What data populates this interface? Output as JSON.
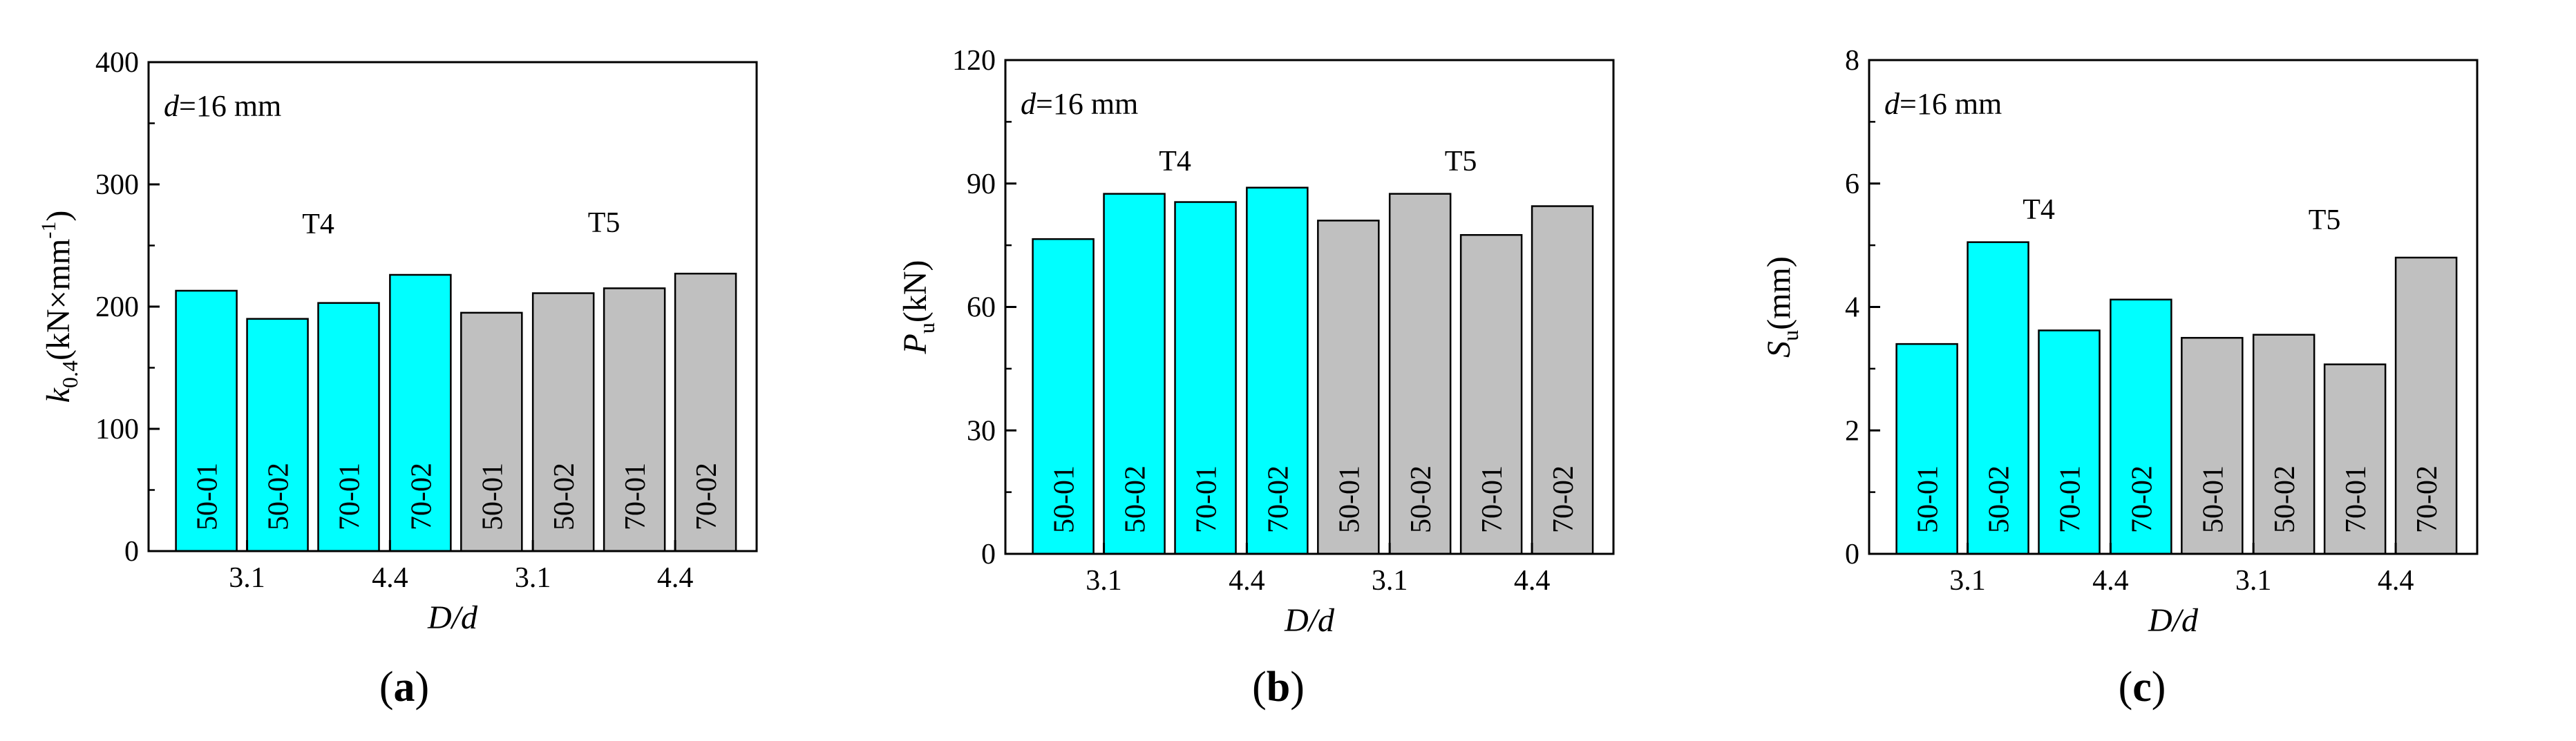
{
  "colors": {
    "T4": "#00FFFF",
    "T5": "#C0C0C0",
    "stroke": "#000000"
  },
  "chart_data": [
    {
      "type": "bar",
      "panel_label": "a",
      "ylabel_main": "k",
      "ylabel_sub": "0.4",
      "ylabel_rest": "(kN×mm",
      "ylabel_sup": "-1",
      "ylabel_close": ")",
      "xlabel": "D/d",
      "ylim": [
        0,
        400
      ],
      "yticks": [
        0,
        100,
        200,
        300,
        400
      ],
      "annotation_var": "d",
      "annotation_rest": "=16 mm",
      "categories": [
        "50-01",
        "50-02",
        "70-01",
        "70-02",
        "50-01",
        "50-02",
        "70-01",
        "70-02"
      ],
      "values": [
        213,
        190,
        203,
        226,
        195,
        211,
        215,
        227
      ],
      "x_group_labels": [
        "3.1",
        "4.4",
        "3.1",
        "4.4"
      ],
      "series": [
        {
          "name": "T4",
          "indices": [
            0,
            1,
            2,
            3
          ]
        },
        {
          "name": "T5",
          "indices": [
            4,
            5,
            6,
            7
          ]
        }
      ]
    },
    {
      "type": "bar",
      "panel_label": "b",
      "ylabel_main": "P",
      "ylabel_sub": "u",
      "ylabel_rest": "(kN)",
      "ylabel_sup": "",
      "ylabel_close": "",
      "xlabel": "D/d",
      "ylim": [
        0,
        120
      ],
      "yticks": [
        0,
        30,
        60,
        90,
        120
      ],
      "annotation_var": "d",
      "annotation_rest": "=16 mm",
      "categories": [
        "50-01",
        "50-02",
        "70-01",
        "70-02",
        "50-01",
        "50-02",
        "70-01",
        "70-02"
      ],
      "values": [
        76.5,
        87.5,
        85.5,
        89,
        81,
        87.5,
        77.5,
        84.5
      ],
      "x_group_labels": [
        "3.1",
        "4.4",
        "3.1",
        "4.4"
      ],
      "series": [
        {
          "name": "T4",
          "indices": [
            0,
            1,
            2,
            3
          ]
        },
        {
          "name": "T5",
          "indices": [
            4,
            5,
            6,
            7
          ]
        }
      ]
    },
    {
      "type": "bar",
      "panel_label": "c",
      "ylabel_main": "S",
      "ylabel_sub": "u",
      "ylabel_rest": "(mm)",
      "ylabel_sup": "",
      "ylabel_close": "",
      "xlabel": "D/d",
      "ylim": [
        0,
        8
      ],
      "yticks": [
        0,
        2,
        4,
        6,
        8
      ],
      "annotation_var": "d",
      "annotation_rest": "=16 mm",
      "categories": [
        "50-01",
        "50-02",
        "70-01",
        "70-02",
        "50-01",
        "50-02",
        "70-01",
        "70-02"
      ],
      "values": [
        3.4,
        5.05,
        3.62,
        4.12,
        3.5,
        3.55,
        3.07,
        4.8
      ],
      "x_group_labels": [
        "3.1",
        "4.4",
        "3.1",
        "4.4"
      ],
      "series": [
        {
          "name": "T4",
          "indices": [
            0,
            1,
            2,
            3
          ]
        },
        {
          "name": "T5",
          "indices": [
            4,
            5,
            6,
            7
          ]
        }
      ]
    }
  ]
}
